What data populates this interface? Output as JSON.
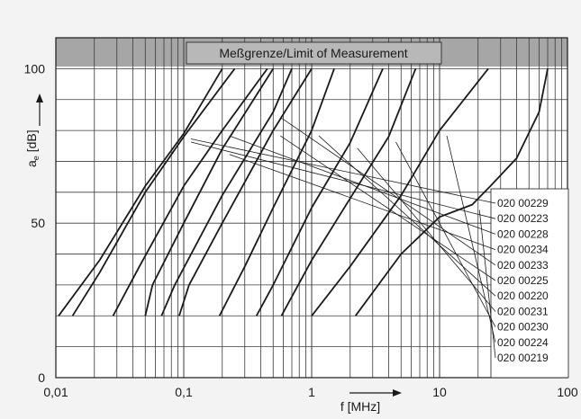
{
  "chart_data": {
    "type": "line",
    "title": "",
    "banner": "Meßgrenze/Limit of Measurement",
    "xlabel": "f [MHz]",
    "ylabel_main": "a",
    "ylabel_sub": "e",
    "ylabel_unit": " [dB]",
    "x_scale": "log",
    "xlim": [
      0.01,
      100
    ],
    "ylim": [
      0,
      110
    ],
    "x_ticks": [
      {
        "value": 0.01,
        "label": "0,01"
      },
      {
        "value": 0.1,
        "label": "0,1"
      },
      {
        "value": 1,
        "label": "1"
      },
      {
        "value": 10,
        "label": "10"
      },
      {
        "value": 100,
        "label": "100"
      }
    ],
    "y_ticks": [
      {
        "value": 0,
        "label": "0"
      },
      {
        "value": 50,
        "label": "50"
      },
      {
        "value": 100,
        "label": "100"
      }
    ],
    "grid": true,
    "measurement_limit_db": 100,
    "legend_position": "bottom-right",
    "series": [
      {
        "name": "020 00229",
        "points": [
          [
            0.0105,
            20
          ],
          [
            0.022,
            38
          ],
          [
            0.05,
            62
          ],
          [
            0.1,
            79
          ],
          [
            0.2,
            100
          ]
        ]
      },
      {
        "name": "020 00223",
        "points": [
          [
            0.0135,
            20
          ],
          [
            0.022,
            34
          ],
          [
            0.05,
            60
          ],
          [
            0.1,
            78
          ],
          [
            0.25,
            100
          ]
        ]
      },
      {
        "name": "020 00228",
        "points": [
          [
            0.028,
            20
          ],
          [
            0.045,
            36
          ],
          [
            0.1,
            62
          ],
          [
            0.2,
            80
          ],
          [
            0.45,
            100
          ]
        ]
      },
      {
        "name": "020 00234",
        "points": [
          [
            0.05,
            20
          ],
          [
            0.057,
            30
          ],
          [
            0.1,
            50
          ],
          [
            0.2,
            74
          ],
          [
            0.5,
            100
          ]
        ]
      },
      {
        "name": "020 00233",
        "points": [
          [
            0.067,
            20
          ],
          [
            0.085,
            30
          ],
          [
            0.2,
            59
          ],
          [
            0.5,
            86
          ],
          [
            0.7,
            100
          ]
        ]
      },
      {
        "name": "020 00225",
        "points": [
          [
            0.092,
            20
          ],
          [
            0.11,
            30
          ],
          [
            0.2,
            50
          ],
          [
            0.5,
            80
          ],
          [
            1.0,
            100
          ]
        ]
      },
      {
        "name": "020 00220",
        "points": [
          [
            0.19,
            20
          ],
          [
            0.3,
            36
          ],
          [
            0.5,
            55
          ],
          [
            1.0,
            80
          ],
          [
            1.5,
            100
          ]
        ]
      },
      {
        "name": "020 00231",
        "points": [
          [
            0.37,
            20
          ],
          [
            0.5,
            30
          ],
          [
            1.0,
            55
          ],
          [
            2.0,
            76
          ],
          [
            3.6,
            100
          ]
        ]
      },
      {
        "name": "020 00230",
        "points": [
          [
            0.58,
            20
          ],
          [
            1.0,
            38
          ],
          [
            2.0,
            58
          ],
          [
            4.0,
            78
          ],
          [
            6.5,
            100
          ]
        ]
      },
      {
        "name": "020 00224",
        "points": [
          [
            1.0,
            20
          ],
          [
            2.0,
            36
          ],
          [
            5.0,
            59
          ],
          [
            10,
            80
          ],
          [
            24,
            100
          ]
        ]
      },
      {
        "name": "020 00219",
        "points": [
          [
            2.2,
            20
          ],
          [
            5,
            40
          ],
          [
            10,
            52
          ],
          [
            18,
            56
          ],
          [
            25,
            62
          ],
          [
            40,
            71
          ],
          [
            60,
            86
          ],
          [
            70,
            100
          ]
        ]
      }
    ]
  }
}
